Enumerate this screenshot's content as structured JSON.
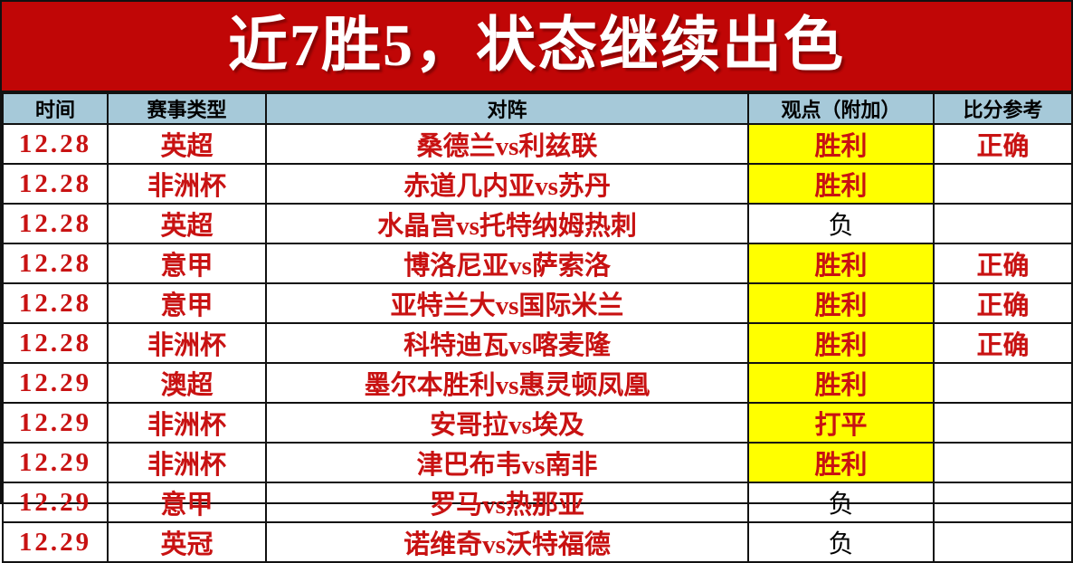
{
  "banner": {
    "title": "近7胜5，状态继续出色"
  },
  "colors": {
    "banner-bg": "#c00606",
    "banner-fg": "#ffffff",
    "header-bg": "#a6c9d9",
    "red": "#c81212",
    "highlight": "#ffff00",
    "grid": "#111111"
  },
  "table": {
    "header": {
      "columns": [
        "时间",
        "赛事类型",
        "对阵",
        "观点（附加）",
        "比分参考"
      ]
    },
    "rows": [
      {
        "date": "12.28",
        "league": "英超",
        "match": "桑德兰vs利兹联",
        "pick": "胜利",
        "pick_highlight": true,
        "result": "正确"
      },
      {
        "date": "12.28",
        "league": "非洲杯",
        "match": "赤道几内亚vs苏丹",
        "pick": "胜利",
        "pick_highlight": true,
        "result": ""
      },
      {
        "date": "12.28",
        "league": "英超",
        "match": "水晶宫vs托特纳姆热刺",
        "pick": "负",
        "pick_highlight": false,
        "result": ""
      },
      {
        "date": "12.28",
        "league": "意甲",
        "match": "博洛尼亚vs萨索洛",
        "pick": "胜利",
        "pick_highlight": true,
        "result": "正确"
      },
      {
        "date": "12.28",
        "league": "意甲",
        "match": "亚特兰大vs国际米兰",
        "pick": "胜利",
        "pick_highlight": true,
        "result": "正确"
      },
      {
        "date": "12.28",
        "league": "非洲杯",
        "match": "科特迪瓦vs喀麦隆",
        "pick": "胜利",
        "pick_highlight": true,
        "result": "正确"
      },
      {
        "date": "12.29",
        "league": "澳超",
        "match": "墨尔本胜利vs惠灵顿凤凰",
        "pick": "胜利",
        "pick_highlight": true,
        "result": ""
      },
      {
        "date": "12.29",
        "league": "非洲杯",
        "match": "安哥拉vs埃及",
        "pick": "打平",
        "pick_highlight": true,
        "result": ""
      },
      {
        "date": "12.29",
        "league": "非洲杯",
        "match": "津巴布韦vs南非",
        "pick": "胜利",
        "pick_highlight": true,
        "result": ""
      },
      {
        "date": "12.29",
        "league": "意甲",
        "match": "罗马vs热那亚",
        "pick": "负",
        "pick_highlight": false,
        "result": ""
      },
      {
        "date": "12.29",
        "league": "英冠",
        "match": "诺维奇vs沃特福德",
        "pick": "负",
        "pick_highlight": false,
        "result": ""
      }
    ]
  }
}
